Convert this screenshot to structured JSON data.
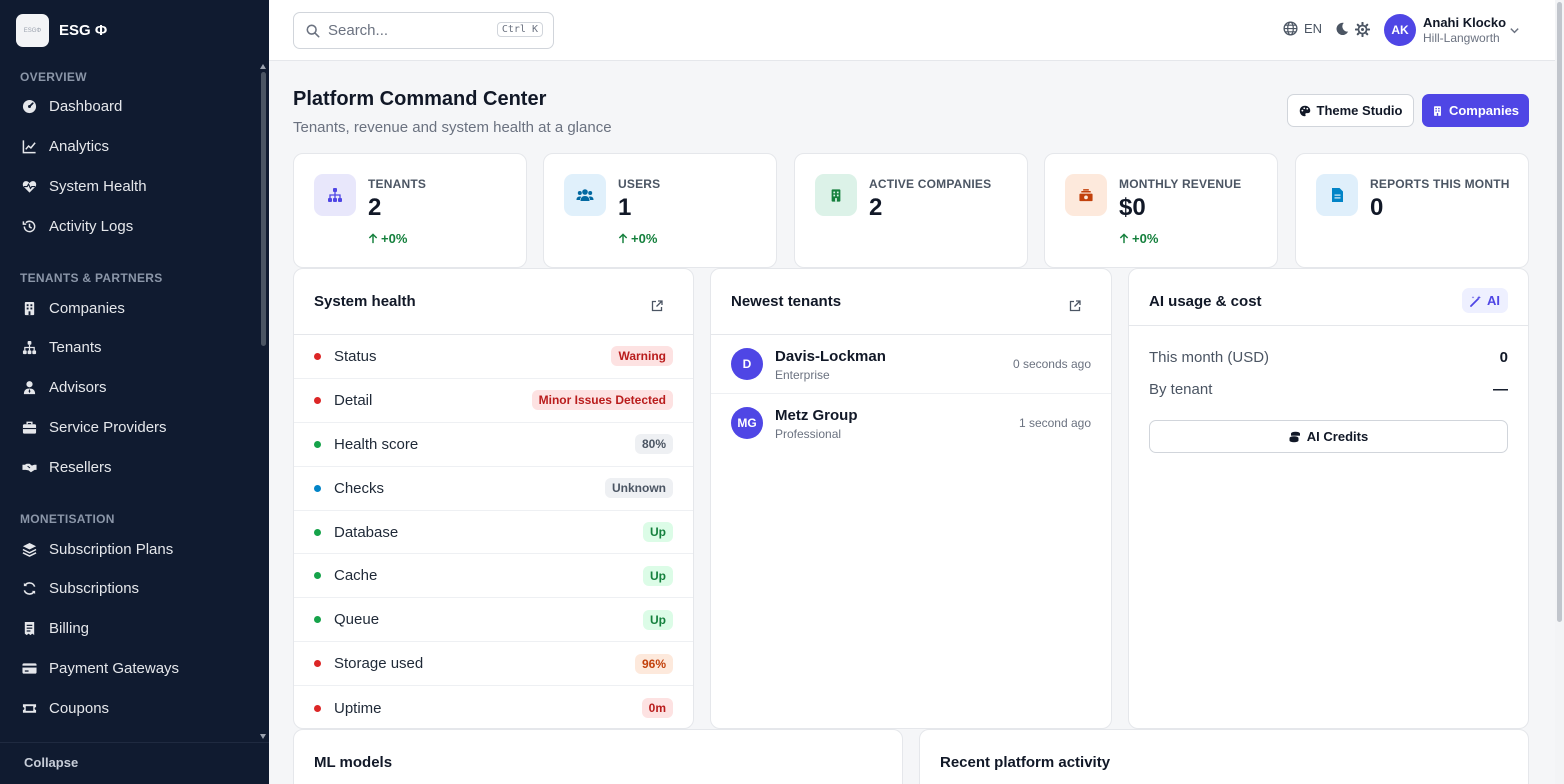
{
  "brand": {
    "name": "ESG Φ",
    "logo_text": "ESGΦ"
  },
  "sidebar": {
    "sections": [
      {
        "title": "OVERVIEW",
        "items": [
          {
            "label": "Dashboard",
            "icon": "gauge-icon"
          },
          {
            "label": "Analytics",
            "icon": "chart-line-icon"
          },
          {
            "label": "System Health",
            "icon": "heart-pulse-icon"
          },
          {
            "label": "Activity Logs",
            "icon": "history-icon"
          }
        ]
      },
      {
        "title": "TENANTS & PARTNERS",
        "items": [
          {
            "label": "Companies",
            "icon": "building-icon"
          },
          {
            "label": "Tenants",
            "icon": "sitemap-icon"
          },
          {
            "label": "Advisors",
            "icon": "user-tie-icon"
          },
          {
            "label": "Service Providers",
            "icon": "briefcase-icon"
          },
          {
            "label": "Resellers",
            "icon": "handshake-icon"
          }
        ]
      },
      {
        "title": "MONETISATION",
        "items": [
          {
            "label": "Subscription Plans",
            "icon": "layers-icon"
          },
          {
            "label": "Subscriptions",
            "icon": "sync-icon"
          },
          {
            "label": "Billing",
            "icon": "receipt-icon"
          },
          {
            "label": "Payment Gateways",
            "icon": "credit-card-icon"
          },
          {
            "label": "Coupons",
            "icon": "ticket-icon"
          }
        ]
      }
    ],
    "collapse_label": "Collapse"
  },
  "topbar": {
    "search_placeholder": "Search...",
    "search_shortcut": "Ctrl K",
    "language": "EN",
    "user": {
      "initials": "AK",
      "name": "Anahi Klocko",
      "org": "Hill-Langworth"
    }
  },
  "header": {
    "title": "Platform Command Center",
    "subtitle": "Tenants, revenue and system health at a glance",
    "theme_button": "Theme Studio",
    "companies_button": "Companies"
  },
  "kpis": [
    {
      "label": "TENANTS",
      "value": "2",
      "delta": "+0%",
      "icon": "sitemap-icon",
      "bg": "#e8e7fb",
      "fg": "#4f46e5"
    },
    {
      "label": "USERS",
      "value": "1",
      "delta": "+0%",
      "icon": "users-icon",
      "bg": "#e0f0fb",
      "fg": "#0369a1"
    },
    {
      "label": "ACTIVE COMPANIES",
      "value": "2",
      "delta": "",
      "icon": "building-icon",
      "bg": "#dcf2e8",
      "fg": "#15803d"
    },
    {
      "label": "MONTHLY REVENUE",
      "value": "$0",
      "delta": "+0%",
      "icon": "money-bill-icon",
      "bg": "#fde9dc",
      "fg": "#c2410c"
    },
    {
      "label": "REPORTS THIS MONTH",
      "value": "0",
      "delta": "",
      "icon": "file-icon",
      "bg": "#dfeffb",
      "fg": "#0284c7"
    }
  ],
  "system_health": {
    "title": "System health",
    "rows": [
      {
        "label": "Status",
        "value": "Warning",
        "dot": "#dc2626",
        "bg": "#fde2e2",
        "fg": "#b91c1c"
      },
      {
        "label": "Detail",
        "value": "Minor Issues Detected",
        "dot": "#dc2626",
        "bg": "#fde2e2",
        "fg": "#b91c1c"
      },
      {
        "label": "Health score",
        "value": "80%",
        "dot": "#16a34a",
        "bg": "#eef0f3",
        "fg": "#4b5563"
      },
      {
        "label": "Checks",
        "value": "Unknown",
        "dot": "#0284c7",
        "bg": "#eef0f3",
        "fg": "#4b5563"
      },
      {
        "label": "Database",
        "value": "Up",
        "dot": "#16a34a",
        "bg": "#dcfce7",
        "fg": "#15803d"
      },
      {
        "label": "Cache",
        "value": "Up",
        "dot": "#16a34a",
        "bg": "#dcfce7",
        "fg": "#15803d"
      },
      {
        "label": "Queue",
        "value": "Up",
        "dot": "#16a34a",
        "bg": "#dcfce7",
        "fg": "#15803d"
      },
      {
        "label": "Storage used",
        "value": "96%",
        "dot": "#dc2626",
        "bg": "#fde9dc",
        "fg": "#c2410c"
      },
      {
        "label": "Uptime",
        "value": "0m",
        "dot": "#dc2626",
        "bg": "#fde2e2",
        "fg": "#b91c1c"
      }
    ]
  },
  "newest_tenants": {
    "title": "Newest tenants",
    "rows": [
      {
        "initials": "D",
        "name": "Davis-Lockman",
        "plan": "Enterprise",
        "time": "0 seconds ago"
      },
      {
        "initials": "MG",
        "name": "Metz Group",
        "plan": "Professional",
        "time": "1 second ago"
      }
    ]
  },
  "ai_usage": {
    "title": "AI usage & cost",
    "badge": "AI",
    "month_label": "This month (USD)",
    "month_value": "0",
    "tenant_label": "By tenant",
    "tenant_value": "—",
    "credits_button": "AI Credits"
  },
  "bottom": {
    "ml_title": "ML models",
    "activity_title": "Recent platform activity"
  }
}
